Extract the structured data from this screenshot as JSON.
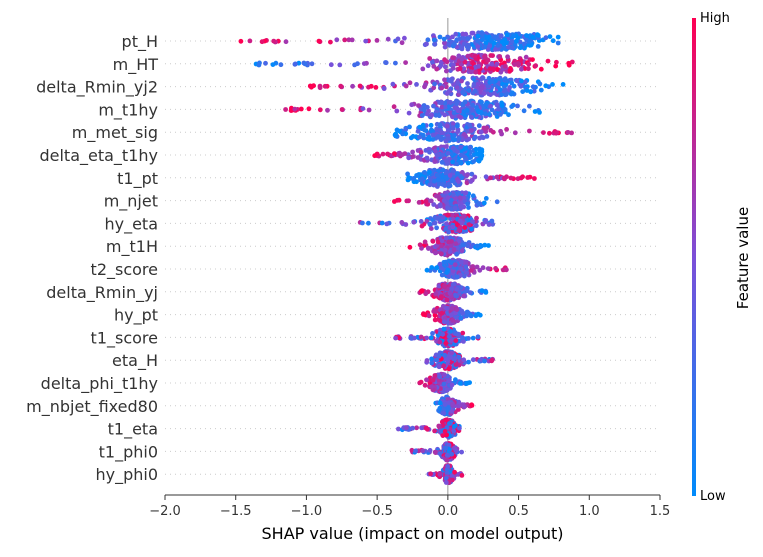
{
  "chart_data": {
    "type": "scatter",
    "subtype": "shap-beeswarm",
    "title": "",
    "xlabel": "SHAP value (impact on model output)",
    "ylabel": "",
    "xlim": [
      -2.0,
      1.5
    ],
    "xticks": [
      -2.0,
      -1.5,
      -1.0,
      -0.5,
      0.0,
      0.5,
      1.0,
      1.5
    ],
    "xtick_labels": [
      "−2.0",
      "−1.5",
      "−1.0",
      "−0.5",
      "0.0",
      "0.5",
      "1.0",
      "1.5"
    ],
    "features": [
      {
        "name": "pt_H",
        "min": -1.48,
        "max": 0.78,
        "peak": 0.3,
        "spread": 0.55,
        "density": 1.0,
        "color_trend": "high-left"
      },
      {
        "name": "m_HT",
        "min": -1.45,
        "max": 0.88,
        "peak": 0.25,
        "spread": 0.55,
        "density": 0.8,
        "color_trend": "high-right"
      },
      {
        "name": "delta_Rmin_yj2",
        "min": -0.98,
        "max": 0.82,
        "peak": 0.25,
        "spread": 0.55,
        "density": 0.9,
        "color_trend": "high-left"
      },
      {
        "name": "m_t1hy",
        "min": -1.22,
        "max": 0.74,
        "peak": 0.1,
        "spread": 0.5,
        "density": 0.9,
        "color_trend": "high-left"
      },
      {
        "name": "m_met_sig",
        "min": -0.38,
        "max": 0.9,
        "peak": 0.0,
        "spread": 0.4,
        "density": 0.7,
        "color_trend": "high-right"
      },
      {
        "name": "delta_eta_t1hy",
        "min": -0.54,
        "max": 0.24,
        "peak": 0.05,
        "spread": 0.3,
        "density": 0.8,
        "color_trend": "high-left"
      },
      {
        "name": "t1_pt",
        "min": -0.3,
        "max": 0.62,
        "peak": -0.05,
        "spread": 0.25,
        "density": 0.8,
        "color_trend": "high-right"
      },
      {
        "name": "m_njet",
        "min": -0.4,
        "max": 0.35,
        "peak": 0.05,
        "spread": 0.2,
        "density": 0.6,
        "color_trend": "high-left"
      },
      {
        "name": "hy_eta",
        "min": -0.62,
        "max": 0.32,
        "peak": 0.05,
        "spread": 0.22,
        "density": 0.7,
        "color_trend": "mixed"
      },
      {
        "name": "m_t1H",
        "min": -0.27,
        "max": 0.3,
        "peak": 0.0,
        "spread": 0.18,
        "density": 0.7,
        "color_trend": "high-left"
      },
      {
        "name": "t2_score",
        "min": -0.15,
        "max": 0.42,
        "peak": 0.05,
        "spread": 0.15,
        "density": 0.8,
        "color_trend": "high-right"
      },
      {
        "name": "delta_Rmin_yj",
        "min": -0.2,
        "max": 0.3,
        "peak": 0.0,
        "spread": 0.14,
        "density": 0.7,
        "color_trend": "high-left"
      },
      {
        "name": "hy_pt",
        "min": -0.18,
        "max": 0.25,
        "peak": 0.0,
        "spread": 0.12,
        "density": 0.7,
        "color_trend": "high-left"
      },
      {
        "name": "t1_score",
        "min": -0.38,
        "max": 0.22,
        "peak": 0.0,
        "spread": 0.12,
        "density": 0.7,
        "color_trend": "mixed"
      },
      {
        "name": "eta_H",
        "min": -0.16,
        "max": 0.32,
        "peak": 0.0,
        "spread": 0.12,
        "density": 0.6,
        "color_trend": "mixed"
      },
      {
        "name": "delta_phi_t1hy",
        "min": -0.24,
        "max": 0.18,
        "peak": -0.05,
        "spread": 0.1,
        "density": 0.7,
        "color_trend": "high-left"
      },
      {
        "name": "m_nbjet_fixed80",
        "min": -0.1,
        "max": 0.18,
        "peak": 0.0,
        "spread": 0.08,
        "density": 0.6,
        "color_trend": "high-right"
      },
      {
        "name": "t1_eta",
        "min": -0.36,
        "max": 0.1,
        "peak": 0.0,
        "spread": 0.08,
        "density": 0.6,
        "color_trend": "mixed"
      },
      {
        "name": "t1_phi0",
        "min": -0.26,
        "max": 0.1,
        "peak": 0.0,
        "spread": 0.06,
        "density": 0.6,
        "color_trend": "mixed"
      },
      {
        "name": "hy_phi0",
        "min": -0.14,
        "max": 0.1,
        "peak": 0.0,
        "spread": 0.04,
        "density": 0.6,
        "color_trend": "mixed"
      }
    ],
    "colorbar": {
      "title": "Feature value",
      "high_label": "High",
      "low_label": "Low",
      "high_color": "#ff0052",
      "low_color": "#008bfb"
    },
    "grid": false,
    "zero_line": true
  }
}
